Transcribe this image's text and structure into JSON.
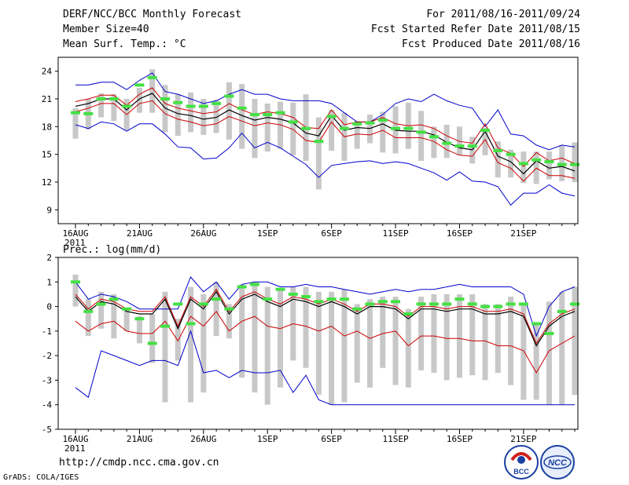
{
  "header": {
    "title": "DERF/NCC/BCC Monthly Forecast",
    "member": "Member Size=40",
    "variable": "Mean Surf. Temp.: °C",
    "period": "For 2011/08/16-2011/09/24",
    "started": "Fcst Started Refer Date 2011/08/15",
    "produced": "Fcst Produced Date 2011/08/16"
  },
  "footer": {
    "url": "http://cmdp.ncc.cma.gov.cn",
    "credit": "GrADS: COLA/IGES"
  },
  "logos": {
    "bcc": "BCC",
    "ncc": "NCC"
  },
  "colors": {
    "envelope": "#0000cc",
    "spread": "#cc0000",
    "mean": "#000000",
    "box": "#c8c8c8",
    "obs": "#44e044"
  },
  "chart_data": [
    {
      "type": "line",
      "title": "Mean Surf. Temp.: °C",
      "x_tick_labels": [
        "16AUG",
        "21AUG",
        "26AUG",
        "1SEP",
        "6SEP",
        "11SEP",
        "16SEP",
        "21SEP"
      ],
      "x_tick_days": [
        1,
        6,
        11,
        16,
        21,
        26,
        31,
        36
      ],
      "year_label": "2011",
      "days": 40,
      "ylim": [
        7.5,
        25.5
      ],
      "yticks": [
        9,
        12,
        15,
        18,
        21,
        24
      ],
      "series": {
        "max": [
          22.5,
          22.5,
          22.8,
          22.8,
          22.0,
          23.0,
          23.8,
          21.8,
          21.5,
          21.0,
          20.5,
          20.8,
          21.5,
          22.0,
          21.5,
          21.5,
          21.0,
          20.8,
          20.8,
          20.8,
          20.5,
          19.5,
          18.5,
          18.5,
          19.3,
          20.5,
          21.0,
          20.7,
          21.5,
          20.8,
          20.3,
          20.0,
          18.0,
          19.8,
          17.2,
          17.0,
          16.0,
          15.5,
          16.0,
          15.8
        ],
        "upper": [
          20.7,
          21.0,
          21.4,
          21.4,
          20.3,
          21.5,
          22.2,
          20.5,
          20.0,
          19.7,
          19.4,
          19.6,
          20.5,
          19.8,
          19.3,
          19.6,
          19.4,
          19.0,
          17.9,
          17.8,
          19.8,
          18.2,
          18.5,
          18.5,
          19.0,
          18.3,
          18.1,
          18.2,
          17.8,
          17.0,
          16.4,
          16.2,
          18.3,
          15.7,
          15.1,
          13.7,
          15.2,
          14.3,
          14.6,
          14.0
        ],
        "mean": [
          20.2,
          20.5,
          21.0,
          21.0,
          19.8,
          21.0,
          21.6,
          20.0,
          19.4,
          19.2,
          18.8,
          19.0,
          19.8,
          19.2,
          18.7,
          19.0,
          18.8,
          18.4,
          17.3,
          17.0,
          19.2,
          17.6,
          17.9,
          17.8,
          18.3,
          17.6,
          17.5,
          17.5,
          17.1,
          16.3,
          15.7,
          15.5,
          17.5,
          14.8,
          14.2,
          12.9,
          14.3,
          13.5,
          13.7,
          13.2
        ],
        "lower": [
          19.6,
          20.0,
          20.5,
          20.5,
          19.3,
          20.5,
          20.8,
          19.4,
          18.8,
          18.5,
          18.1,
          18.3,
          19.1,
          18.6,
          18.1,
          18.4,
          18.2,
          17.7,
          16.5,
          16.3,
          18.5,
          16.9,
          17.2,
          17.1,
          17.6,
          16.8,
          16.8,
          16.8,
          16.4,
          15.5,
          14.9,
          14.8,
          16.6,
          14.1,
          13.5,
          12.1,
          13.5,
          12.7,
          12.7,
          12.4
        ],
        "min": [
          18.2,
          17.8,
          18.5,
          18.3,
          17.5,
          18.3,
          18.3,
          17.2,
          15.8,
          15.7,
          14.5,
          14.6,
          15.7,
          17.3,
          15.7,
          16.3,
          15.7,
          14.8,
          13.9,
          12.5,
          13.8,
          14.0,
          14.2,
          14.3,
          14.0,
          14.2,
          14.0,
          13.5,
          13.0,
          12.2,
          13.1,
          12.1,
          12.0,
          11.5,
          9.5,
          10.8,
          10.8,
          11.7,
          10.8,
          10.5
        ],
        "box_top": [
          20.0,
          21.0,
          21.6,
          21.5,
          21.0,
          22.2,
          24.2,
          22.5,
          21.5,
          21.7,
          21.0,
          20.9,
          22.8,
          22.6,
          21.0,
          20.5,
          20.7,
          20.6,
          21.5,
          19.0,
          19.8,
          19.5,
          18.6,
          19.3,
          19.6,
          20.2,
          20.6,
          19.7,
          18.0,
          18.2,
          18.0,
          16.9,
          17.9,
          16.4,
          15.5,
          15.3,
          15.3,
          15.3,
          16.0,
          16.3
        ],
        "box_bottom": [
          16.7,
          17.7,
          19.0,
          18.6,
          17.6,
          19.5,
          19.5,
          17.4,
          17.0,
          17.4,
          17.1,
          17.3,
          16.6,
          15.6,
          14.6,
          15.3,
          15.6,
          14.9,
          14.3,
          11.2,
          15.4,
          14.3,
          15.6,
          16.2,
          15.2,
          15.1,
          15.6,
          14.3,
          14.6,
          14.6,
          14.9,
          14.0,
          14.9,
          12.5,
          12.5,
          11.9,
          11.8,
          12.3,
          12.1,
          12.0
        ],
        "observed": [
          19.5,
          19.4,
          21.0,
          21.0,
          20.2,
          22.5,
          23.3,
          21.0,
          20.6,
          20.2,
          20.2,
          20.5,
          21.3,
          20.0,
          19.3,
          19.3,
          19.5,
          18.5,
          17.8,
          16.4,
          19.1,
          17.8,
          18.3,
          18.4,
          18.7,
          17.8,
          17.8,
          17.4,
          16.9,
          16.2,
          15.9,
          15.9,
          17.6,
          15.4,
          15.0,
          14.0,
          14.4,
          14.2,
          13.9,
          13.9
        ]
      }
    },
    {
      "type": "line",
      "title": "Prec.: log(mm/d)",
      "x_tick_labels": [
        "16AUG",
        "21AUG",
        "26AUG",
        "1SEP",
        "6SEP",
        "11SEP",
        "16SEP",
        "21SEP"
      ],
      "x_tick_days": [
        1,
        6,
        11,
        16,
        21,
        26,
        31,
        36
      ],
      "year_label": "2011",
      "days": 40,
      "ylim": [
        -5,
        2
      ],
      "yticks": [
        -5,
        -4,
        -3,
        -2,
        -1,
        0,
        1,
        2
      ],
      "series": {
        "max": [
          1.0,
          0.3,
          0.5,
          0.4,
          0.2,
          -0.1,
          -0.1,
          -0.1,
          -0.1,
          1.2,
          0.6,
          1.0,
          0.3,
          0.9,
          1.0,
          1.0,
          0.8,
          0.8,
          0.9,
          0.8,
          0.8,
          0.7,
          0.6,
          0.5,
          0.6,
          0.7,
          0.6,
          0.7,
          0.7,
          0.8,
          0.9,
          0.8,
          0.8,
          0.8,
          0.8,
          0.5,
          -1.2,
          0.0,
          0.6,
          0.8
        ],
        "mean": [
          0.4,
          -0.2,
          0.2,
          0.1,
          -0.2,
          -0.3,
          -0.3,
          0.3,
          -0.9,
          0.3,
          -0.1,
          0.6,
          -0.3,
          0.3,
          0.5,
          0.2,
          0.0,
          0.3,
          0.2,
          0.0,
          0.2,
          0.0,
          -0.3,
          0.0,
          0.0,
          -0.1,
          -0.5,
          -0.1,
          -0.1,
          -0.2,
          -0.1,
          -0.1,
          -0.3,
          -0.3,
          -0.2,
          -0.4,
          -1.6,
          -0.8,
          -0.4,
          -0.2
        ],
        "upper": [
          0.5,
          -0.1,
          0.3,
          0.2,
          -0.1,
          -0.2,
          -0.2,
          0.4,
          -0.8,
          0.4,
          0.0,
          0.7,
          -0.2,
          0.4,
          0.6,
          0.3,
          0.1,
          0.4,
          0.3,
          0.1,
          0.3,
          0.1,
          -0.2,
          0.1,
          0.1,
          0.0,
          -0.4,
          0.0,
          0.0,
          -0.1,
          0.0,
          0.0,
          -0.2,
          -0.2,
          -0.1,
          -0.3,
          -1.5,
          -0.7,
          -0.3,
          -0.1
        ],
        "lower": [
          -0.6,
          -1.0,
          -0.7,
          -0.6,
          -1.0,
          -1.1,
          -1.1,
          -0.6,
          -1.4,
          -0.4,
          -0.8,
          -0.2,
          -1.0,
          -0.6,
          -0.4,
          -0.8,
          -0.9,
          -0.7,
          -0.8,
          -1.0,
          -0.8,
          -1.2,
          -1.0,
          -1.3,
          -1.1,
          -1.0,
          -1.6,
          -1.2,
          -1.2,
          -1.3,
          -1.3,
          -1.4,
          -1.4,
          -1.6,
          -1.6,
          -1.8,
          -2.7,
          -1.8,
          -1.5,
          -1.2
        ],
        "min": [
          -3.3,
          -3.7,
          -1.8,
          -2.0,
          -2.2,
          -2.4,
          -2.2,
          -2.2,
          -2.4,
          -1.0,
          -2.7,
          -2.6,
          -2.9,
          -2.6,
          -2.7,
          -2.7,
          -2.6,
          -3.5,
          -2.8,
          -3.8,
          -4.0,
          -4.0,
          -4.0,
          -4.0,
          -4.0,
          -4.0,
          -4.0,
          -4.0,
          -4.0,
          -4.0,
          -4.0,
          -4.0,
          -4.0,
          -4.0,
          -4.0,
          -4.0,
          -4.0,
          -4.0,
          -4.0,
          -4.0
        ],
        "box_top": [
          1.3,
          0.3,
          0.6,
          0.5,
          -0.1,
          -0.4,
          -0.3,
          0.6,
          -0.5,
          0.8,
          0.5,
          1.0,
          0.1,
          0.9,
          1.0,
          0.8,
          0.7,
          0.8,
          0.8,
          0.6,
          0.6,
          0.7,
          0.1,
          0.3,
          0.4,
          0.4,
          -0.1,
          0.4,
          0.5,
          0.5,
          0.5,
          0.5,
          0.1,
          0.1,
          0.4,
          0.1,
          -0.7,
          0.2,
          0.6,
          0.8
        ],
        "box_bottom": [
          0.0,
          -1.2,
          -0.9,
          -1.3,
          -1.0,
          -1.5,
          -2.3,
          -3.9,
          -2.2,
          -3.9,
          -3.5,
          -1.2,
          -1.3,
          -2.9,
          -3.5,
          -4.0,
          -3.3,
          -2.2,
          -2.5,
          -3.6,
          -4.0,
          -3.9,
          -3.1,
          -3.3,
          -2.5,
          -3.2,
          -3.3,
          -2.6,
          -2.7,
          -3.0,
          -2.9,
          -2.8,
          -3.0,
          -2.7,
          -3.2,
          -3.8,
          -3.8,
          -4.0,
          -4.0,
          -3.6
        ],
        "observed": [
          1.0,
          -0.2,
          0.1,
          0.3,
          -0.1,
          -0.5,
          -1.5,
          -0.8,
          0.1,
          -0.7,
          0.1,
          0.3,
          -0.1,
          0.8,
          0.9,
          0.3,
          0.7,
          0.5,
          0.4,
          0.2,
          0.3,
          0.3,
          -0.1,
          0.1,
          0.2,
          0.2,
          -0.3,
          0.1,
          0.1,
          0.1,
          0.3,
          0.1,
          0.0,
          0.0,
          0.1,
          0.1,
          -0.7,
          -1.1,
          -0.2,
          0.1
        ]
      }
    }
  ]
}
